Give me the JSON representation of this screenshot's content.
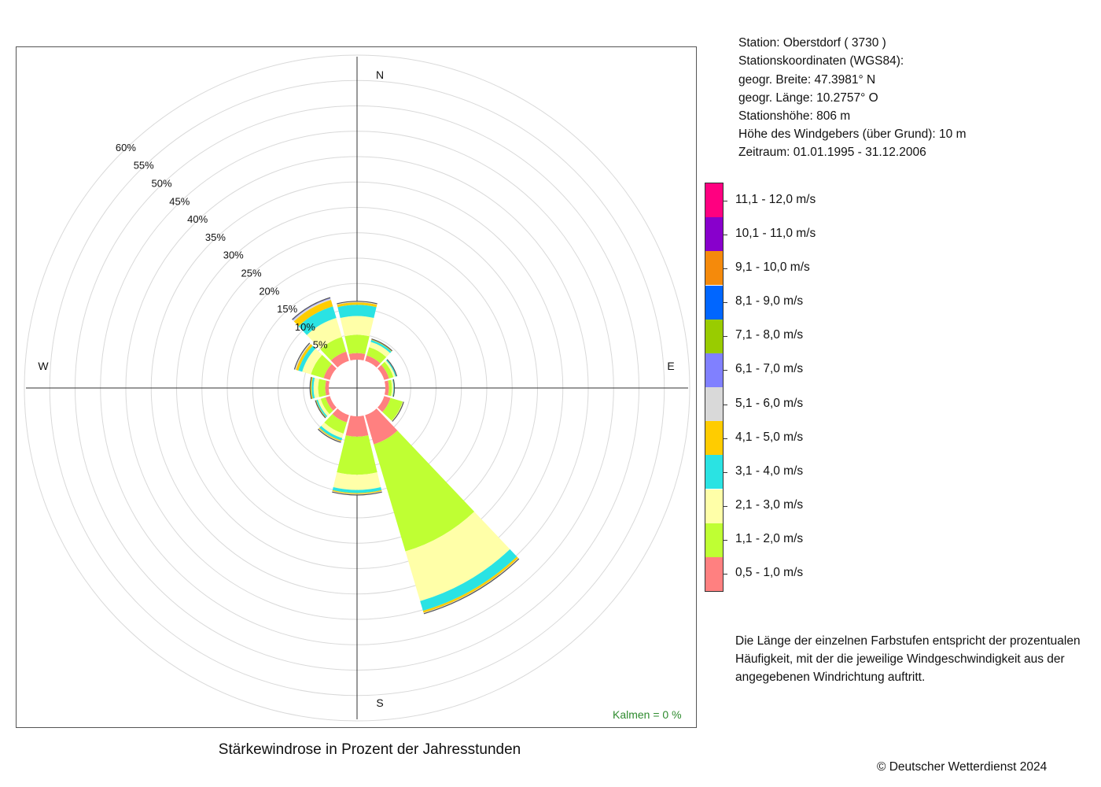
{
  "header": {
    "station": "Station:  Oberstdorf  ( 3730 )",
    "coords_heading": "Stationskoordinaten (WGS84):",
    "latitude": "geogr. Breite: 47.3981° N",
    "longitude": "geogr. Länge: 10.2757° O",
    "elevation": "Stationshöhe: 806 m",
    "sensor_height": "Höhe des Windgebers (über Grund): 10 m",
    "period": "Zeitraum: 01.01.1995 - 31.12.2006"
  },
  "legend": {
    "items": [
      {
        "label": "11,1 - 12,0 m/s",
        "color": "#ff0080"
      },
      {
        "label": "10,1 - 11,0 m/s",
        "color": "#8800cc"
      },
      {
        "label": "9,1 - 10,0 m/s",
        "color": "#f58a0b"
      },
      {
        "label": "8,1 - 9,0 m/s",
        "color": "#0066ff"
      },
      {
        "label": "7,1 - 8,0 m/s",
        "color": "#99cc00"
      },
      {
        "label": "6,1 - 7,0 m/s",
        "color": "#8080ff"
      },
      {
        "label": "5,1 - 6,0 m/s",
        "color": "#d9d9d9"
      },
      {
        "label": "4,1 - 5,0 m/s",
        "color": "#ffcc00"
      },
      {
        "label": "3,1 - 4,0 m/s",
        "color": "#2ae3e3"
      },
      {
        "label": "2,1 - 3,0 m/s",
        "color": "#ffffa8"
      },
      {
        "label": "1,1 - 2,0 m/s",
        "color": "#bfff33"
      },
      {
        "label": "0,5 - 1,0 m/s",
        "color": "#ff8080"
      }
    ]
  },
  "note": "Die Länge der einzelnen Farbstufen entspricht der prozentualen Häufigkeit, mit der die jeweilige Windgeschwindigkeit aus der angegebenen Windrichtung auftritt.",
  "title": "Stärkewindrose in Prozent der Jahresstunden",
  "copyright": "© Deutscher Wetterdienst  2024",
  "calm": "Kalmen  =  0 %",
  "chart_data": {
    "type": "windrose",
    "title": "Stärkewindrose in Prozent der Jahresstunden",
    "unit": "%",
    "radial_range": [
      0,
      60
    ],
    "radial_ticks": [
      5,
      10,
      15,
      20,
      25,
      30,
      35,
      40,
      45,
      50,
      55,
      60
    ],
    "radial_tick_labels": [
      "5%",
      "10%",
      "15%",
      "20%",
      "25%",
      "30%",
      "35%",
      "40%",
      "45%",
      "50%",
      "55%",
      "60%"
    ],
    "compass_labels": {
      "n": "N",
      "e": "E",
      "s": "S",
      "w": "W"
    },
    "direction_step_deg": 30,
    "colors": [
      "#ff8080",
      "#bfff33",
      "#ffffa8",
      "#2ae3e3",
      "#ffcc00",
      "#d9d9d9",
      "#8080ff",
      "#99cc00",
      "#0066ff",
      "#f58a0b",
      "#8800cc",
      "#ff0080"
    ],
    "series": [
      {
        "direction": 0,
        "values": [
          1.3,
          3.6,
          3.7,
          2.2,
          0.5,
          0.1,
          0,
          0,
          0,
          0,
          0,
          0
        ]
      },
      {
        "direction": 30,
        "values": [
          1.1,
          1.7,
          1.1,
          0.4,
          0.1,
          0,
          0,
          0,
          0,
          0,
          0,
          0
        ]
      },
      {
        "direction": 60,
        "values": [
          1.0,
          0.9,
          0.4,
          0.2,
          0,
          0,
          0,
          0,
          0,
          0,
          0,
          0
        ]
      },
      {
        "direction": 90,
        "values": [
          0.7,
          0.6,
          0.3,
          0.1,
          0,
          0,
          0,
          0,
          0,
          0,
          0,
          0
        ]
      },
      {
        "direction": 120,
        "values": [
          1.3,
          2.5,
          0.1,
          0,
          0,
          0,
          0,
          0,
          0,
          0,
          0,
          0
        ]
      },
      {
        "direction": 150,
        "values": [
          6.0,
          22.0,
          10.2,
          2.0,
          0.4,
          0.1,
          0,
          0,
          0,
          0,
          0,
          0
        ]
      },
      {
        "direction": 180,
        "values": [
          4.0,
          7.5,
          3.0,
          0.6,
          0.2,
          0.1,
          0,
          0,
          0,
          0,
          0,
          0
        ]
      },
      {
        "direction": 210,
        "values": [
          1.5,
          2.3,
          0.9,
          0.5,
          0.2,
          0.1,
          0,
          0,
          0,
          0,
          0,
          0
        ]
      },
      {
        "direction": 240,
        "values": [
          0.9,
          1.0,
          0.6,
          0.3,
          0.1,
          0,
          0,
          0,
          0,
          0,
          0,
          0
        ]
      },
      {
        "direction": 270,
        "values": [
          0.7,
          1.4,
          0.9,
          0.4,
          0.2,
          0,
          0,
          0,
          0,
          0,
          0,
          0
        ]
      },
      {
        "direction": 300,
        "values": [
          1.3,
          2.6,
          1.8,
          0.8,
          0.5,
          0.2,
          0,
          0,
          0,
          0,
          0,
          0
        ]
      },
      {
        "direction": 330,
        "values": [
          1.9,
          3.0,
          3.9,
          2.4,
          1.3,
          0.3,
          0.1,
          0,
          0,
          0,
          0,
          0
        ]
      }
    ]
  }
}
